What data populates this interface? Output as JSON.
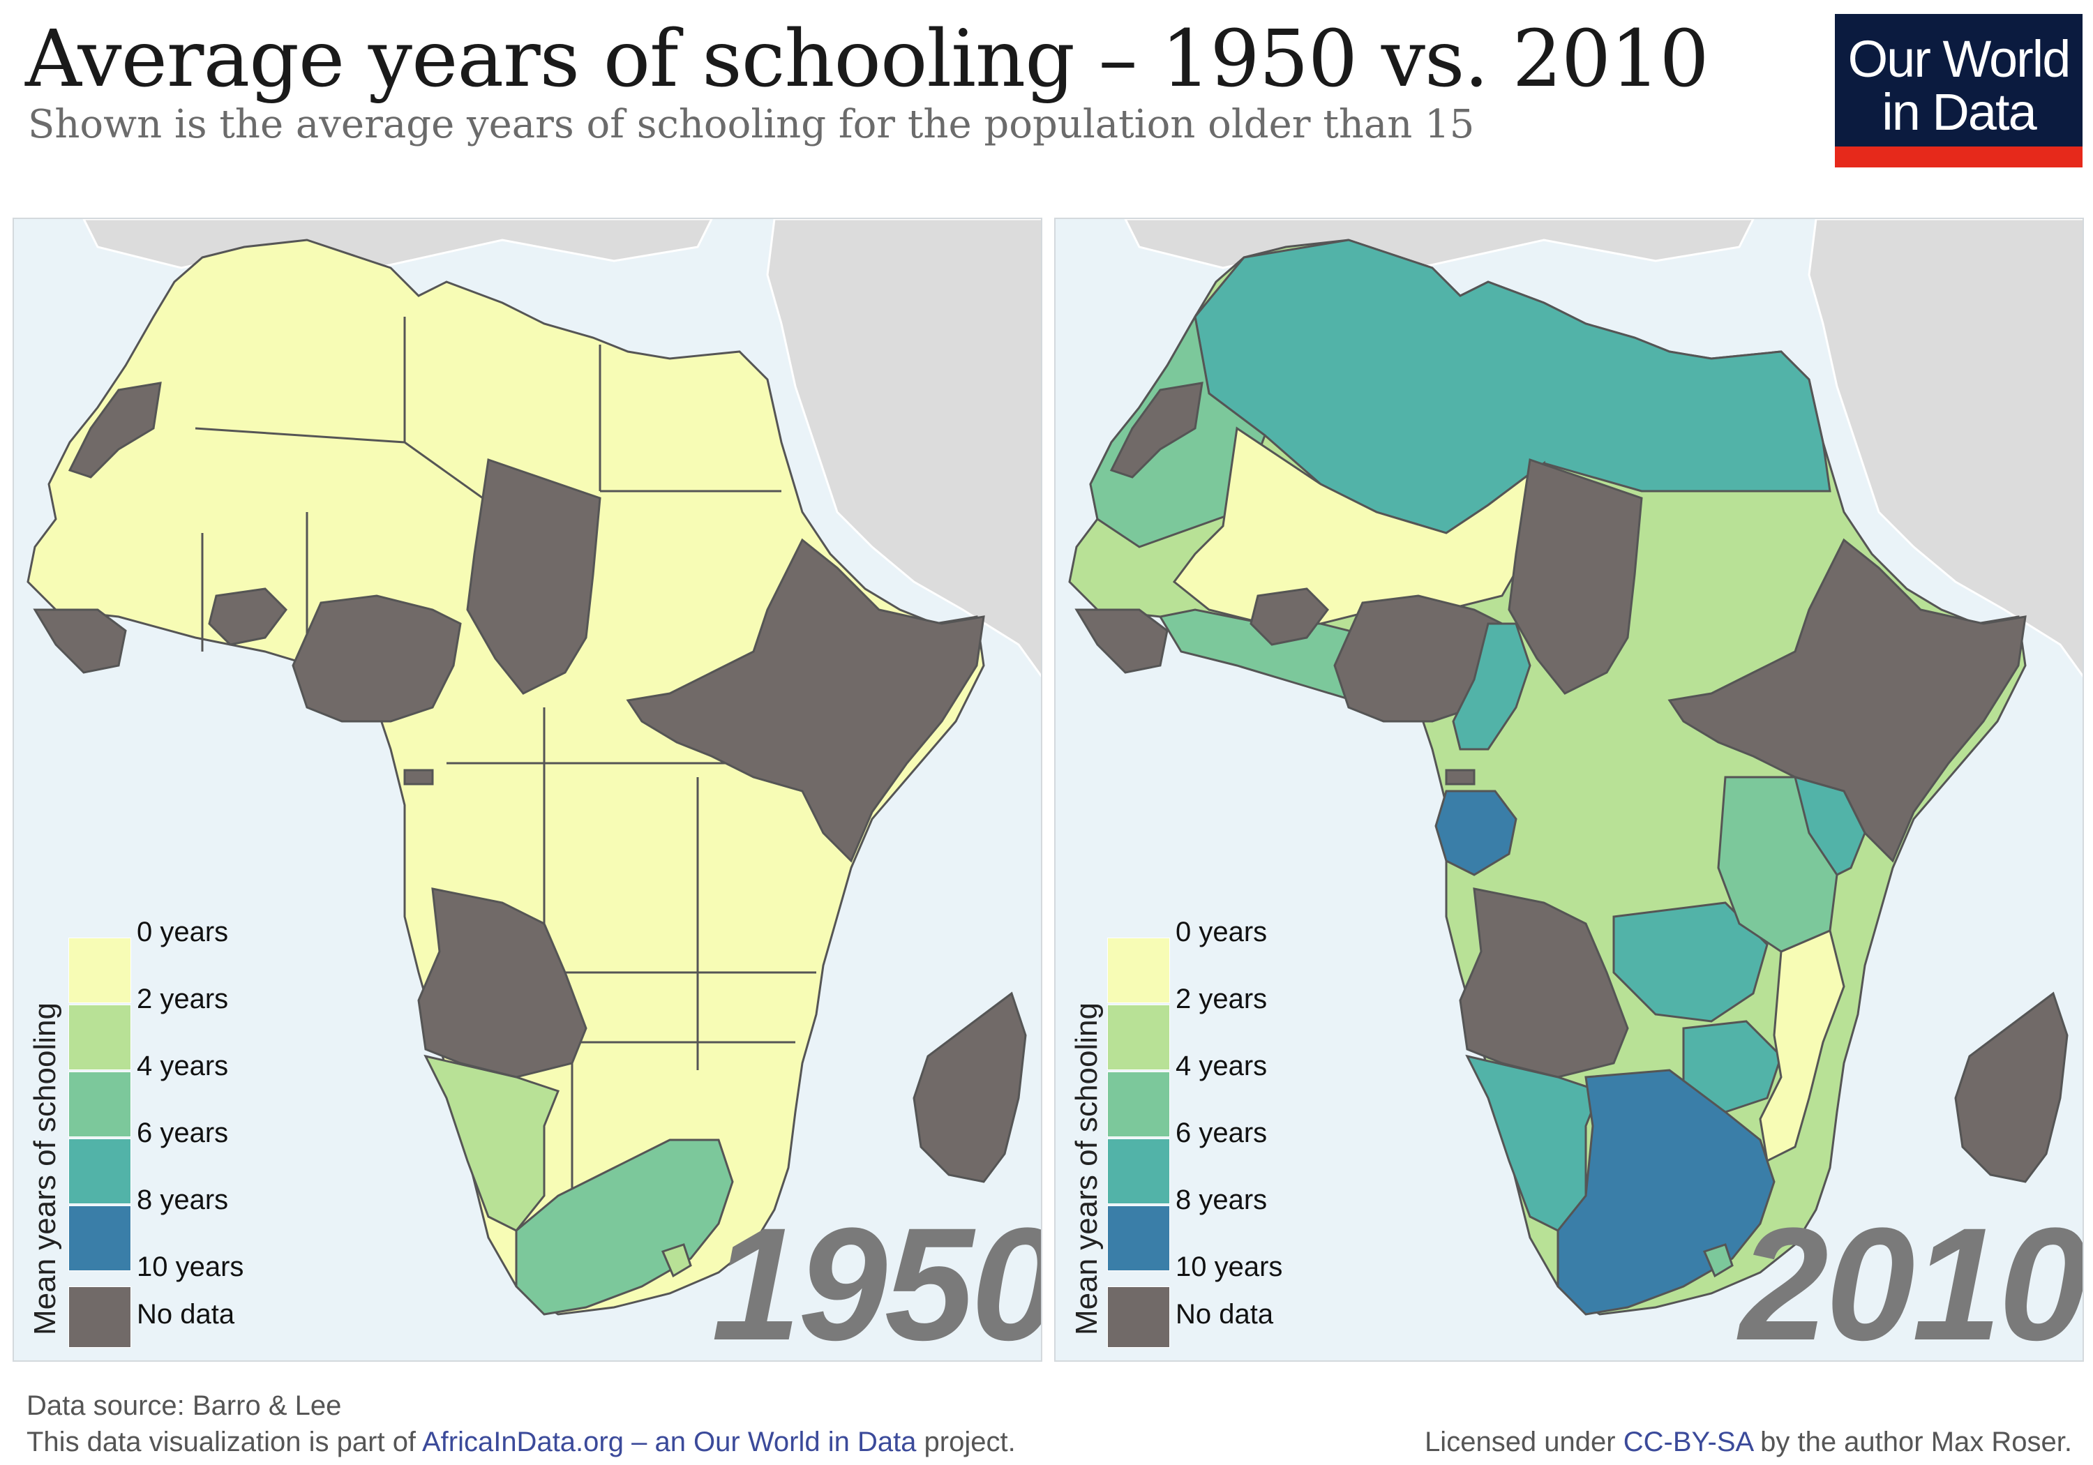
{
  "header": {
    "title": "Average years of schooling – 1950 vs. 2010",
    "subtitle": "Shown is the average years of schooling for the population older than 15"
  },
  "logo": {
    "line1": "Our World",
    "line2": "in Data",
    "bg_color": "#0b1b3f",
    "bar_color": "#e6291b"
  },
  "legend": {
    "title": "Mean years of schooling",
    "labels": [
      "0 years",
      "2 years",
      "4 years",
      "6 years",
      "8 years",
      "10 years"
    ],
    "no_data_label": "No data",
    "colors": [
      "#f7fcb5",
      "#b8e196",
      "#7cc89b",
      "#52b3a8",
      "#3a7ea8"
    ],
    "no_data_color": "#716a68"
  },
  "maps": [
    {
      "year_label": "1950"
    },
    {
      "year_label": "2010"
    }
  ],
  "footer": {
    "source": "Data source: Barro & Lee",
    "part_prefix": "This data visualization is part of ",
    "part_link": "AfricaInData.org – an Our World in Data",
    "part_suffix": " project.",
    "license_prefix": "Licensed under ",
    "license_link": "CC-BY-SA",
    "license_suffix": " by the author Max Roser."
  }
}
